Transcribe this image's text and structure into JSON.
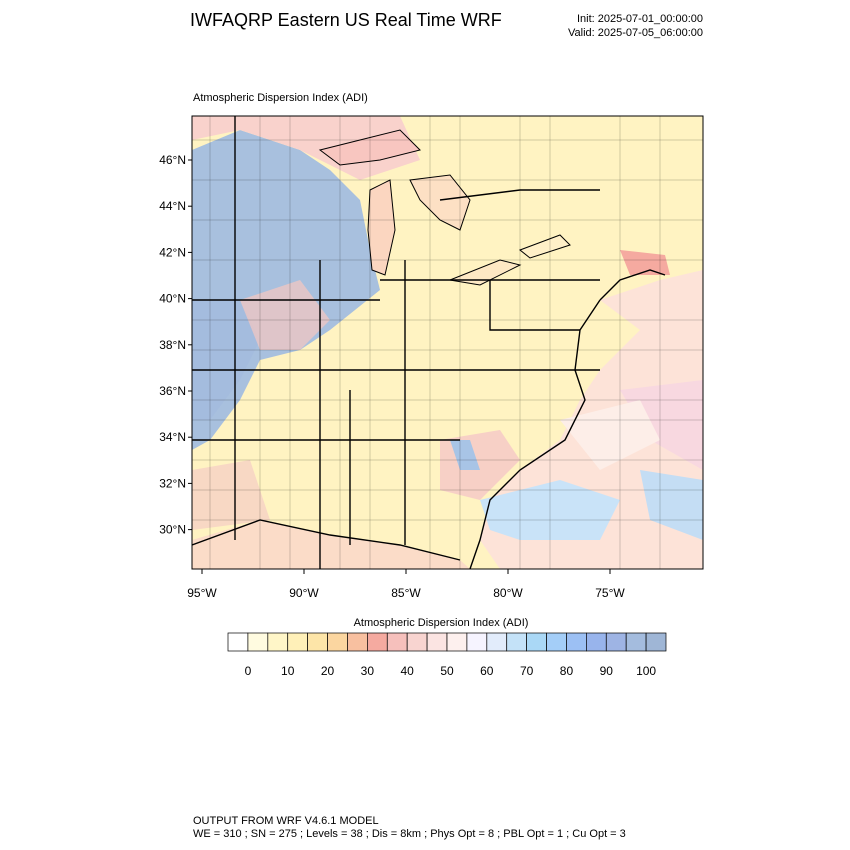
{
  "header": {
    "title": "IWFAQRP Eastern US Real Time WRF",
    "init": "Init: 2025-07-01_00:00:00",
    "valid": "Valid: 2025-07-05_06:00:00"
  },
  "map": {
    "subtitle": "Atmospheric Dispersion Index   (ADI)",
    "lat_labels": [
      "46°N",
      "44°N",
      "42°N",
      "40°N",
      "38°N",
      "36°N",
      "34°N",
      "32°N",
      "30°N"
    ],
    "lon_labels": [
      "95°W",
      "90°W",
      "85°W",
      "80°W",
      "75°W"
    ]
  },
  "colorbar": {
    "title": "Atmospheric Dispersion Index  (ADI)",
    "labels": [
      "0",
      "10",
      "20",
      "30",
      "40",
      "50",
      "60",
      "70",
      "80",
      "90",
      "100"
    ],
    "colors": [
      "#ffffff",
      "#fffbe0",
      "#fff6c8",
      "#fff0b8",
      "#fde5a8",
      "#fbd6a0",
      "#f8c0a0",
      "#f5aaa0",
      "#f6c0bc",
      "#f8d4d0",
      "#fbe4e2",
      "#fdf0ee",
      "#f6f4ff",
      "#e2ecfb",
      "#c4e2f8",
      "#aad8f6",
      "#a4cef8",
      "#9cc0f4",
      "#98b4ec",
      "#9eb4e4",
      "#a4bcde",
      "#9fb6d6"
    ]
  },
  "footer": {
    "line1": "OUTPUT FROM WRF V4.6.1 MODEL",
    "line2": "WE = 310 ; SN = 275 ; Levels = 38 ; Dis = 8km ; Phys Opt = 8 ; PBL Opt = 1 ; Cu Opt = 3"
  }
}
